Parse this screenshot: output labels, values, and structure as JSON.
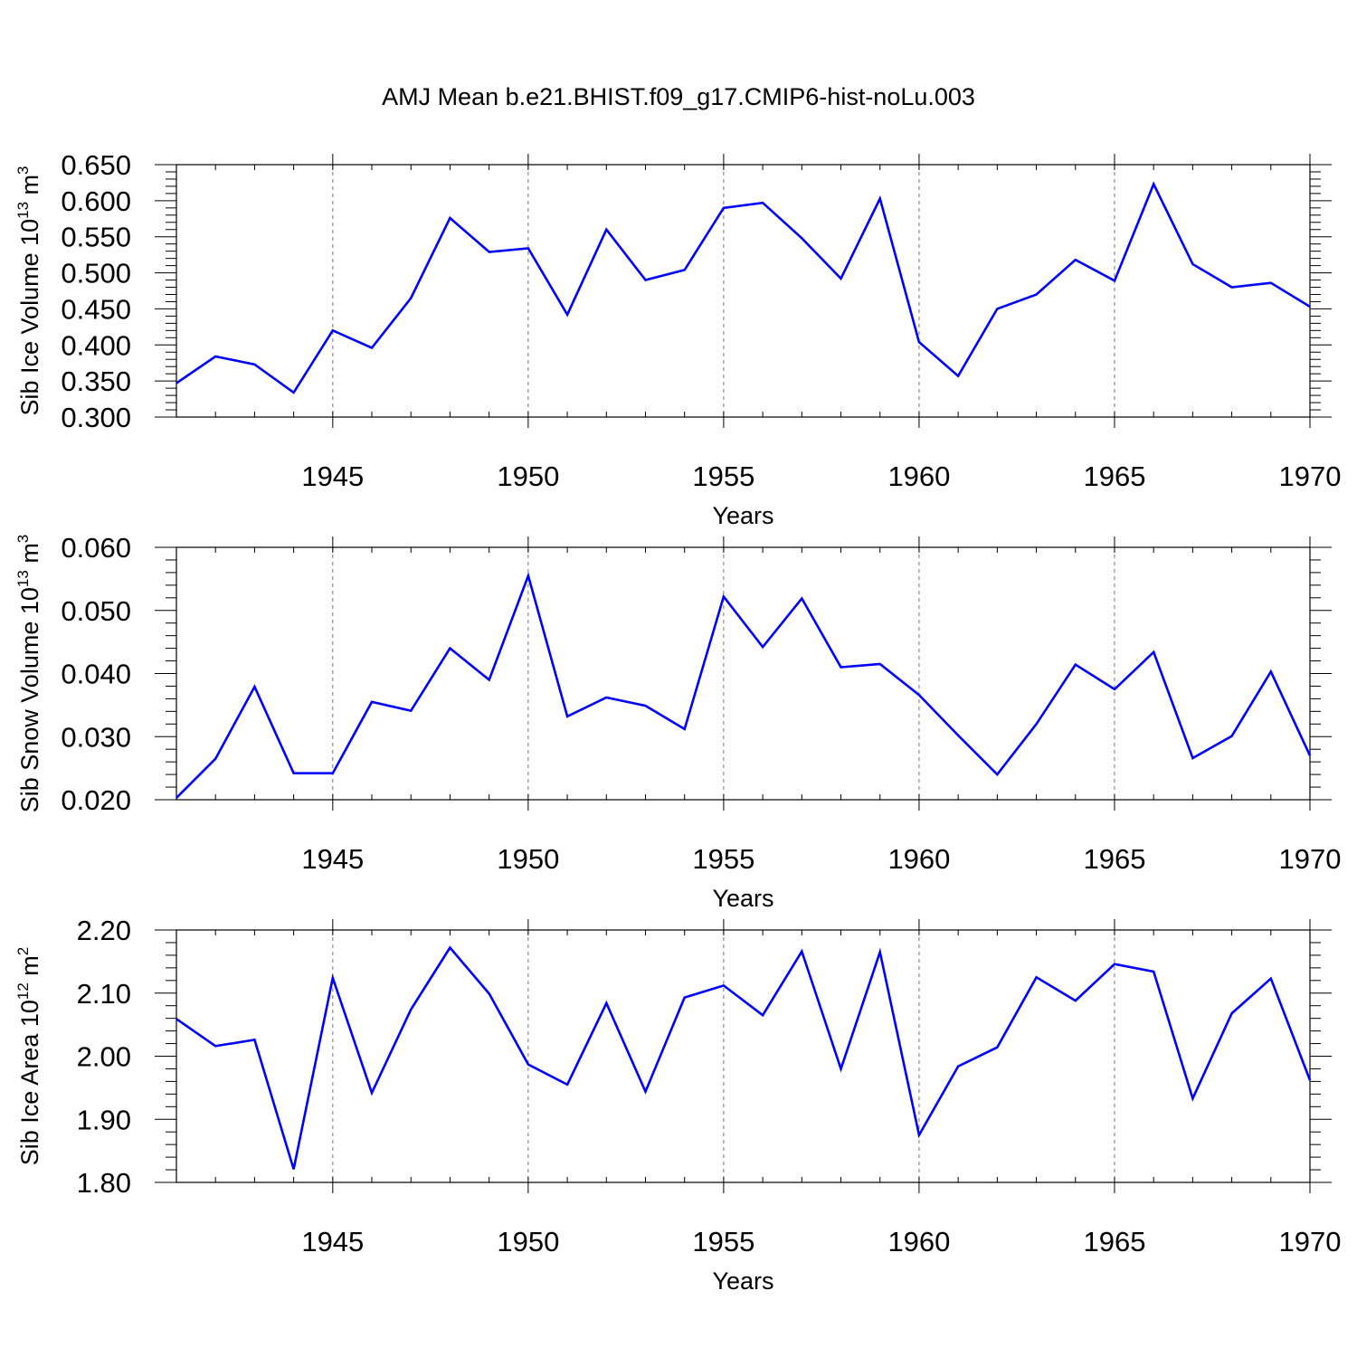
{
  "figure": {
    "title": "AMJ Mean b.e21.BHIST.f09_g17.CMIP6-hist-noLu.003"
  },
  "chart_data": [
    {
      "type": "line",
      "xlabel": "Years",
      "ylabel": {
        "text": "Sib Ice Volume 10",
        "sup": "13",
        "unit": " m",
        "unit_sup": "3"
      },
      "xlim": [
        1941,
        1970
      ],
      "ylim": [
        0.3,
        0.65
      ],
      "xticks": [
        1945,
        1950,
        1955,
        1960,
        1965,
        1970
      ],
      "yticks": [
        "0.300",
        "0.350",
        "0.400",
        "0.450",
        "0.500",
        "0.550",
        "0.600",
        "0.650"
      ],
      "grid": "vertical dashed at labeled x ticks",
      "color": "#0000ff",
      "x": [
        1941,
        1942,
        1943,
        1944,
        1945,
        1946,
        1947,
        1948,
        1949,
        1950,
        1951,
        1952,
        1953,
        1954,
        1955,
        1956,
        1957,
        1958,
        1959,
        1960,
        1961,
        1962,
        1963,
        1964,
        1965,
        1966,
        1967,
        1968,
        1969,
        1970
      ],
      "y": [
        0.347,
        0.384,
        0.373,
        0.334,
        0.42,
        0.396,
        0.465,
        0.576,
        0.529,
        0.534,
        0.442,
        0.56,
        0.49,
        0.504,
        0.59,
        0.597,
        0.548,
        0.492,
        0.603,
        0.404,
        0.357,
        0.45,
        0.47,
        0.518,
        0.489,
        0.623,
        0.512,
        0.48,
        0.486,
        0.453
      ]
    },
    {
      "type": "line",
      "xlabel": "Years",
      "ylabel": {
        "text": "Sib Snow Volume 10",
        "sup": "13",
        "unit": " m",
        "unit_sup": "3"
      },
      "xlim": [
        1941,
        1970
      ],
      "ylim": [
        0.02,
        0.06
      ],
      "xticks": [
        1945,
        1950,
        1955,
        1960,
        1965,
        1970
      ],
      "yticks": [
        "0.020",
        "0.030",
        "0.040",
        "0.050",
        "0.060"
      ],
      "grid": "vertical dashed at labeled x ticks",
      "color": "#0000ff",
      "x": [
        1941,
        1942,
        1943,
        1944,
        1945,
        1946,
        1947,
        1948,
        1949,
        1950,
        1951,
        1952,
        1953,
        1954,
        1955,
        1956,
        1957,
        1958,
        1959,
        1960,
        1961,
        1962,
        1963,
        1964,
        1965,
        1966,
        1967,
        1968,
        1969,
        1970
      ],
      "y": [
        0.0203,
        0.0265,
        0.0379,
        0.0242,
        0.0242,
        0.0355,
        0.0341,
        0.044,
        0.039,
        0.0555,
        0.0332,
        0.0362,
        0.0349,
        0.0312,
        0.0522,
        0.0442,
        0.0519,
        0.041,
        0.0415,
        0.0366,
        0.0302,
        0.024,
        0.032,
        0.0414,
        0.0375,
        0.0434,
        0.0266,
        0.0301,
        0.0403,
        0.027
      ]
    },
    {
      "type": "line",
      "xlabel": "Years",
      "ylabel": {
        "text": "Sib Ice Area 10",
        "sup": "12",
        "unit": " m",
        "unit_sup": "2"
      },
      "xlim": [
        1941,
        1970
      ],
      "ylim": [
        1.8,
        2.2
      ],
      "xticks": [
        1945,
        1950,
        1955,
        1960,
        1965,
        1970
      ],
      "yticks": [
        "1.80",
        "1.90",
        "2.00",
        "2.10",
        "2.20"
      ],
      "grid": "vertical dashed at labeled x ticks",
      "color": "#0000ff",
      "x": [
        1941,
        1942,
        1943,
        1944,
        1945,
        1946,
        1947,
        1948,
        1949,
        1950,
        1951,
        1952,
        1953,
        1954,
        1955,
        1956,
        1957,
        1958,
        1959,
        1960,
        1961,
        1962,
        1963,
        1964,
        1965,
        1966,
        1967,
        1968,
        1969,
        1970
      ],
      "y": [
        2.059,
        2.016,
        2.026,
        1.821,
        2.124,
        1.942,
        2.074,
        2.172,
        2.099,
        1.987,
        1.955,
        2.084,
        1.944,
        2.093,
        2.112,
        2.065,
        2.166,
        1.98,
        2.165,
        1.875,
        1.984,
        2.014,
        2.125,
        2.088,
        2.146,
        2.134,
        1.933,
        2.068,
        2.123,
        1.962
      ]
    }
  ]
}
